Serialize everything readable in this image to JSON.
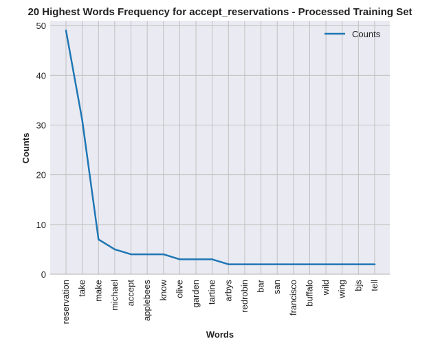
{
  "chart_data": {
    "type": "line",
    "title": "20 Highest Words Frequency for accept_reservations - Processed Training Set",
    "xlabel": "Words",
    "ylabel": "Counts",
    "ylim": [
      0,
      51
    ],
    "yticks": [
      0,
      10,
      20,
      30,
      40,
      50
    ],
    "grid": true,
    "legend_position": "top-right",
    "categories": [
      "reservation",
      "take",
      "make",
      "michael",
      "accept",
      "applebees",
      "know",
      "olive",
      "garden",
      "tartine",
      "arbys",
      "redrobin",
      "bar",
      "san",
      "francisco",
      "buffalo",
      "wild",
      "wing",
      "bjs",
      "tell"
    ],
    "series": [
      {
        "name": "Counts",
        "values": [
          49,
          31,
          7,
          5,
          4,
          4,
          4,
          3,
          3,
          3,
          2,
          2,
          2,
          2,
          2,
          2,
          2,
          2,
          2,
          2
        ]
      }
    ]
  },
  "colors": {
    "line": "#1f77b4",
    "plot_background": "#eaeaf2",
    "grid": "#c0c0c0",
    "axis": "#b0b0b0",
    "text": "#222222"
  }
}
